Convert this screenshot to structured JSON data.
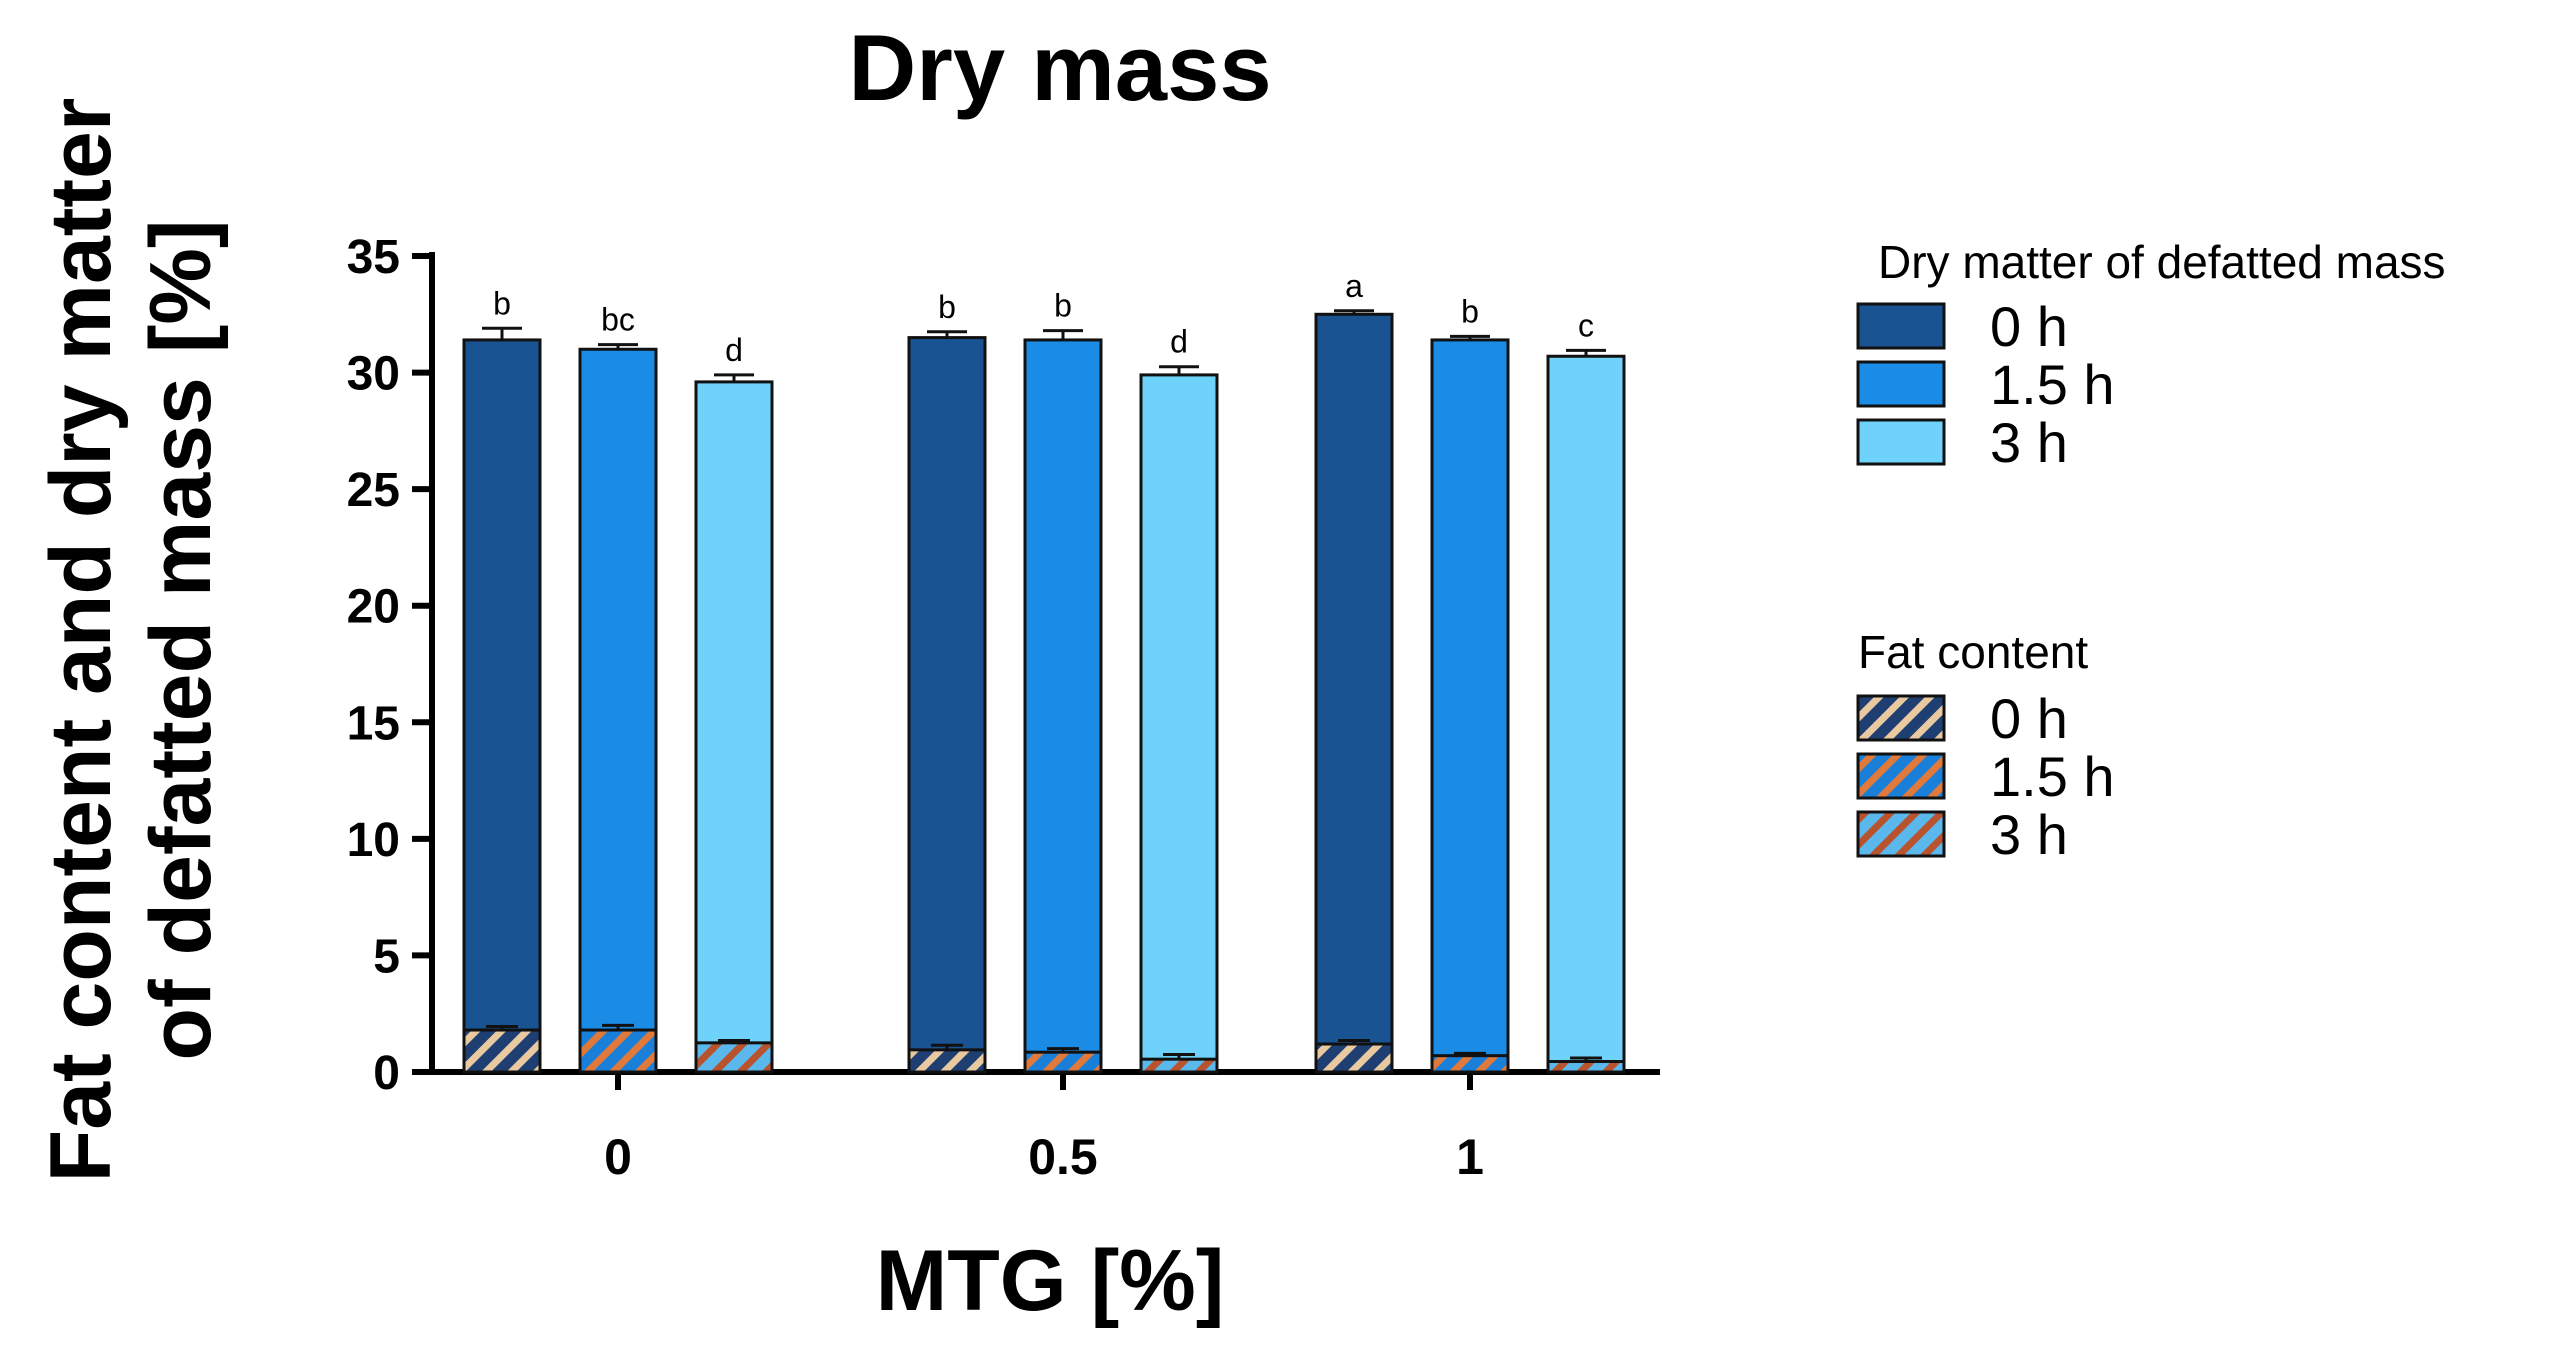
{
  "chart_data": {
    "type": "bar",
    "title": "Dry mass",
    "xlabel": "MTG [%]",
    "ylabel_line1": "Fat content and dry matter",
    "ylabel_line2": "of defatted mass [%]",
    "ylim": [
      0,
      35
    ],
    "yticks": [
      0,
      5,
      10,
      15,
      20,
      25,
      30,
      35
    ],
    "categories": [
      "0",
      "0.5",
      "1"
    ],
    "series": [
      {
        "name": "0 h",
        "dry_matter": [
          31.4,
          31.5,
          32.5
        ],
        "dry_matter_err": [
          0.5,
          0.25,
          0.15
        ],
        "fat": [
          1.8,
          0.95,
          1.2
        ],
        "fat_err": [
          0.15,
          0.2,
          0.15
        ],
        "sig": [
          "b",
          "b",
          "a"
        ]
      },
      {
        "name": "1.5 h",
        "dry_matter": [
          31.0,
          31.4,
          31.4
        ],
        "dry_matter_err": [
          0.2,
          0.4,
          0.15
        ],
        "fat": [
          1.8,
          0.85,
          0.7
        ],
        "fat_err": [
          0.2,
          0.15,
          0.1
        ],
        "sig": [
          "bc",
          "b",
          "b"
        ]
      },
      {
        "name": "3 h",
        "dry_matter": [
          29.6,
          29.9,
          30.7
        ],
        "dry_matter_err": [
          0.3,
          0.35,
          0.25
        ],
        "fat": [
          1.25,
          0.55,
          0.45
        ],
        "fat_err": [
          0.1,
          0.2,
          0.15
        ],
        "sig": [
          "d",
          "d",
          "c"
        ]
      }
    ],
    "legend": {
      "dry_matter_title": "Dry matter of defatted mass",
      "fat_title": "Fat content",
      "entries": [
        "0 h",
        "1.5 h",
        "3 h"
      ]
    },
    "colors": {
      "dry_matter": [
        "#1a5391",
        "#1a8ce6",
        "#6ed2fa"
      ],
      "fat_base": [
        "#1f3f73",
        "#1a7fd8",
        "#5ab8ec"
      ],
      "fat_stripe": [
        "#e8c9a0",
        "#e0793a",
        "#b9532e"
      ],
      "axis": "#000000"
    }
  }
}
